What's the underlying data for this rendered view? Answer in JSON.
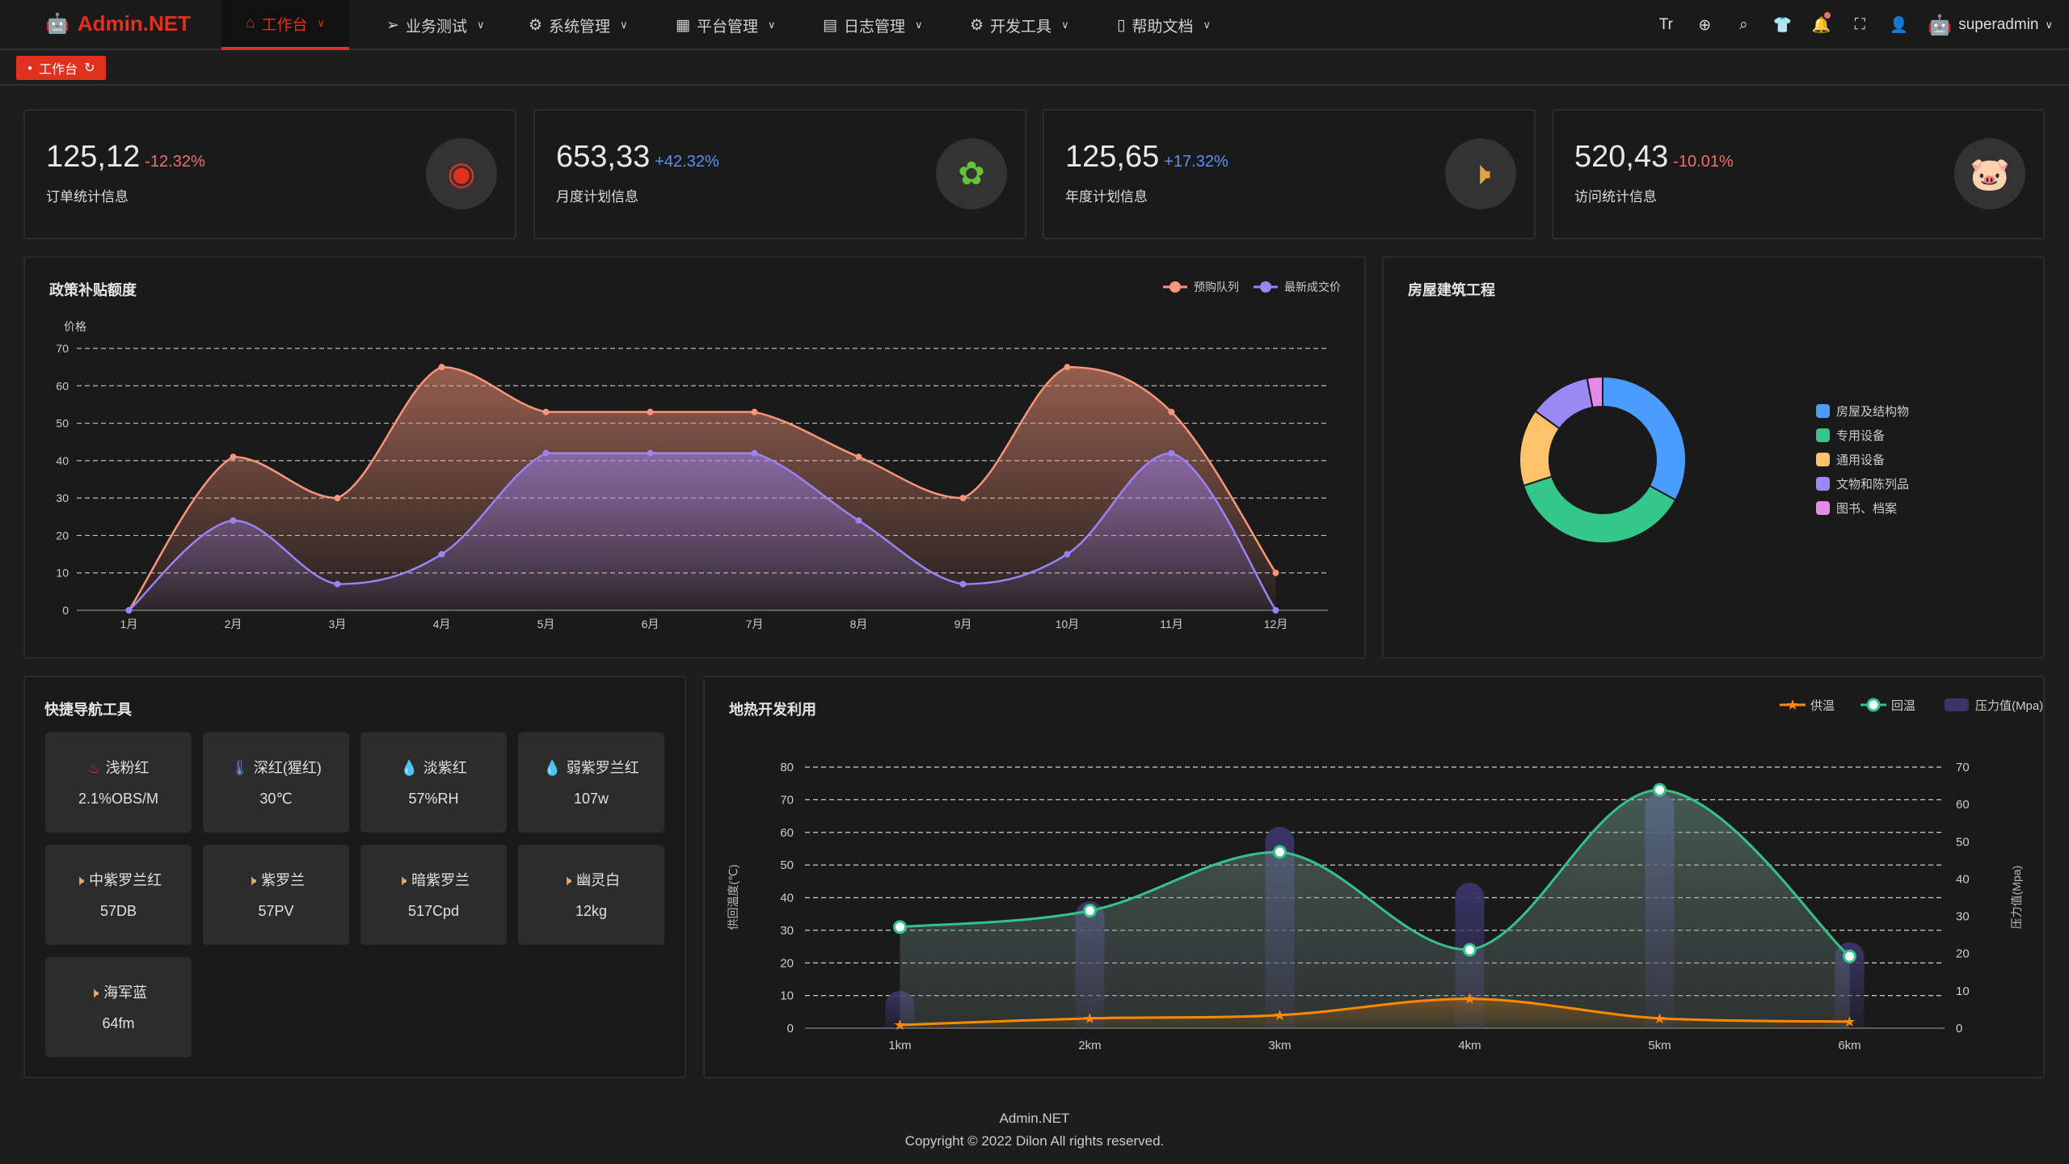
{
  "header": {
    "logo": "Admin.NET",
    "menus": [
      {
        "label": "工作台",
        "icon": "home-icon"
      },
      {
        "label": "业务测试",
        "icon": "send-icon"
      },
      {
        "label": "系统管理",
        "icon": "gear-icon"
      },
      {
        "label": "平台管理",
        "icon": "grid-icon"
      },
      {
        "label": "日志管理",
        "icon": "document-icon"
      },
      {
        "label": "开发工具",
        "icon": "chip-icon"
      },
      {
        "label": "帮助文档",
        "icon": "phone-icon"
      }
    ],
    "user": "superadmin"
  },
  "tags": {
    "active": "工作台"
  },
  "stats": [
    {
      "value": "125,12",
      "change": "-12.32%",
      "label": "订单统计信息",
      "icon": "weibo-icon",
      "icon_color": "#e0301e",
      "change_color": "#f56c6c"
    },
    {
      "value": "653,33",
      "change": "+42.32%",
      "label": "月度计划信息",
      "icon": "china-map-icon",
      "icon_color": "#67c23a",
      "change_color": "#5b8ff9"
    },
    {
      "value": "125,65",
      "change": "+17.32%",
      "label": "年度计划信息",
      "icon": "speaker-icon",
      "icon_color": "#e6a23c",
      "change_color": "#5b8ff9"
    },
    {
      "value": "520,43",
      "change": "-10.01%",
      "label": "访问统计信息",
      "icon": "pig-icon",
      "icon_color": "#f56c6c",
      "change_color": "#f56c6c"
    }
  ],
  "chart_data": [
    {
      "title": "政策补贴额度",
      "type": "area",
      "ylabel": "价格",
      "ylim": [
        0,
        70
      ],
      "yticks": [
        0,
        10,
        20,
        30,
        40,
        50,
        60,
        70
      ],
      "grid": true,
      "legend": "top-right",
      "categories": [
        "1月",
        "2月",
        "3月",
        "4月",
        "5月",
        "6月",
        "7月",
        "8月",
        "9月",
        "10月",
        "11月",
        "12月"
      ],
      "series": [
        {
          "name": "预购队列",
          "color": "#f8957a",
          "values": [
            0,
            41,
            30,
            65,
            53,
            53,
            53,
            41,
            30,
            65,
            53,
            10
          ]
        },
        {
          "name": "最新成交价",
          "color": "#9b82f5",
          "values": [
            0,
            24,
            7,
            15,
            42,
            42,
            42,
            24,
            7,
            15,
            42,
            0
          ]
        }
      ]
    },
    {
      "title": "房屋建筑工程",
      "type": "pie",
      "legend": "right",
      "slices": [
        {
          "name": "房屋及结构物",
          "value": 33,
          "color": "#4a9dff"
        },
        {
          "name": "专用设备",
          "value": 37,
          "color": "#33c78a"
        },
        {
          "name": "通用设备",
          "value": 15,
          "color": "#fdc36a"
        },
        {
          "name": "文物和陈列品",
          "value": 12,
          "color": "#9a88f5"
        },
        {
          "name": "图书、档案",
          "value": 3,
          "color": "#e58ae8"
        }
      ]
    },
    {
      "title": "地热开发利用",
      "type": "line",
      "categories": [
        "1km",
        "2km",
        "3km",
        "4km",
        "5km",
        "6km"
      ],
      "ylabel_left": "供回温度(℃)",
      "ylabel_right": "压力值(Mpa)",
      "ylim_left": [
        0,
        80
      ],
      "ylim_right": [
        0,
        70
      ],
      "yticks_left": [
        0,
        10,
        20,
        30,
        40,
        50,
        60,
        70,
        80
      ],
      "yticks_right": [
        0,
        10,
        20,
        30,
        40,
        50,
        60,
        70
      ],
      "grid": true,
      "legend": "top-right",
      "series": [
        {
          "name": "供温",
          "type": "line",
          "axis": "left",
          "color": "#ff8a00",
          "values": [
            1,
            3,
            4,
            9,
            3,
            2
          ]
        },
        {
          "name": "回温",
          "type": "line",
          "axis": "left",
          "color": "#33c38a",
          "values": [
            31,
            36,
            54,
            24,
            73,
            22
          ]
        },
        {
          "name": "压力值(Mpa)",
          "type": "bar",
          "axis": "right",
          "color": "#3a3466",
          "values": [
            10,
            34,
            54,
            39,
            63,
            23
          ]
        }
      ]
    }
  ],
  "quicknav": {
    "title": "快捷导航工具",
    "items": [
      {
        "label": "浅粉红",
        "value": "2.1%OBS/M",
        "icon": "chimney-icon",
        "color": "#e0303e"
      },
      {
        "label": "深红(猩红)",
        "value": "30℃",
        "icon": "thermometer-icon",
        "color": "#6f9ad8"
      },
      {
        "label": "淡紫红",
        "value": "57%RH",
        "icon": "water-drop-icon",
        "color": "#67c23a"
      },
      {
        "label": "弱紫罗兰红",
        "value": "107w",
        "icon": "water-drop-icon",
        "color": "#67c23a"
      },
      {
        "label": "中紫罗兰红",
        "value": "57DB",
        "icon": "speaker-icon",
        "color": "#e6b06c"
      },
      {
        "label": "紫罗兰",
        "value": "57PV",
        "icon": "speaker-icon",
        "color": "#e6b06c"
      },
      {
        "label": "暗紫罗兰",
        "value": "517Cpd",
        "icon": "speaker-icon",
        "color": "#e6b06c"
      },
      {
        "label": "幽灵白",
        "value": "12kg",
        "icon": "speaker-icon",
        "color": "#e6b06c"
      },
      {
        "label": "海军蓝",
        "value": "64fm",
        "icon": "speaker-icon",
        "color": "#e6b06c"
      }
    ]
  },
  "footer": {
    "name": "Admin.NET",
    "copyright": "Copyright © 2022 Dilon All rights reserved."
  }
}
